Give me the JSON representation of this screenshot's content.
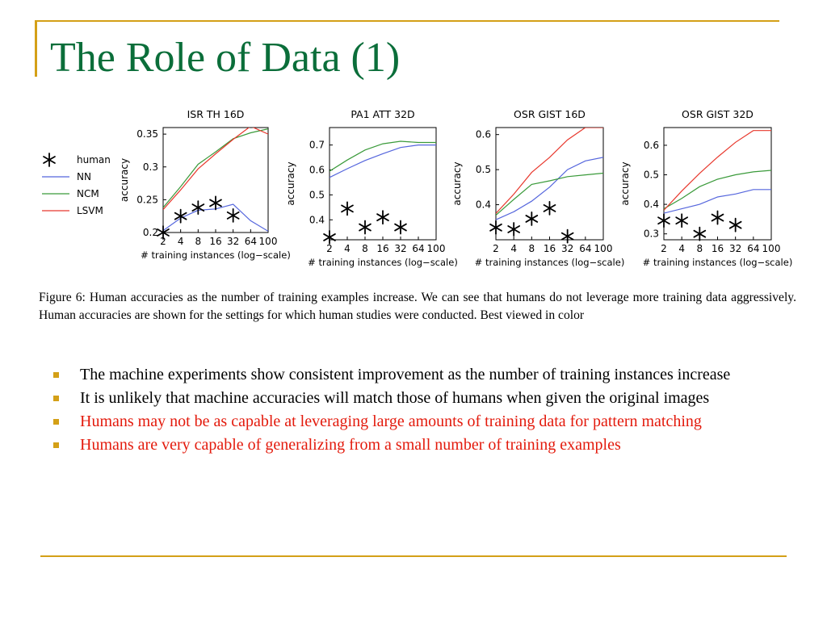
{
  "slide": {
    "title": "The Role of Data (1)",
    "caption": "Figure 6: Human accuracies as the number of training examples increase. We can see that humans do not leverage more training data aggressively. Human accuracies are shown for the settings for which human studies were conducted. Best viewed in color",
    "bullets": [
      {
        "text": "The machine experiments show consistent improvement as the number of training instances increase",
        "color": "#000000"
      },
      {
        "text": "It is unlikely that machine accuracies will match those of humans when given the original images",
        "color": "#000000"
      },
      {
        "text": "Humans may not be as capable at leveraging large amounts of training data for pattern matching",
        "color": "#e31a0c"
      },
      {
        "text": "Humans are very capable of generalizing from a small number of training examples",
        "color": "#e31a0c"
      }
    ],
    "colors": {
      "title": "#0b6e3a",
      "accent": "#d4a017",
      "highlight": "#e31a0c"
    }
  },
  "legend": [
    {
      "name": "human",
      "style": "asterisk",
      "color": "#000000"
    },
    {
      "name": "NN",
      "style": "line",
      "color": "#5566dd"
    },
    {
      "name": "NCM",
      "style": "line",
      "color": "#3a9a3a"
    },
    {
      "name": "LSVM",
      "style": "line",
      "color": "#e8382d"
    }
  ],
  "chart_data": [
    {
      "type": "line",
      "title": "ISR TH 16D",
      "xlabel": "# training instances (log−scale)",
      "ylabel": "accuracy",
      "x": [
        2,
        4,
        8,
        16,
        32,
        64,
        100
      ],
      "ylim": [
        0.2,
        0.36
      ],
      "yticks": [
        0.2,
        0.25,
        0.3,
        0.35
      ],
      "yticklabels": [
        "0.2",
        "0.25",
        "0.3",
        "0.35"
      ],
      "series": [
        {
          "name": "NN",
          "values": [
            0.203,
            0.222,
            0.234,
            0.236,
            0.243,
            0.218,
            0.202
          ]
        },
        {
          "name": "NCM",
          "values": [
            0.238,
            0.27,
            0.304,
            0.323,
            0.343,
            0.352,
            0.358
          ]
        },
        {
          "name": "LSVM",
          "values": [
            0.235,
            0.265,
            0.297,
            0.32,
            0.342,
            0.362,
            0.35
          ]
        },
        {
          "name": "human",
          "x": [
            2,
            4,
            8,
            16,
            32
          ],
          "values": [
            0.2,
            0.225,
            0.238,
            0.245,
            0.226
          ]
        }
      ]
    },
    {
      "type": "line",
      "title": "PA1 ATT 32D",
      "xlabel": "# training instances (log−scale)",
      "ylabel": "accuracy",
      "x": [
        2,
        4,
        8,
        16,
        32,
        64,
        100
      ],
      "ylim": [
        0.32,
        0.77
      ],
      "yticks": [
        0.4,
        0.5,
        0.6,
        0.7
      ],
      "yticklabels": [
        "0.4",
        "0.5",
        "0.6",
        "0.7"
      ],
      "series": [
        {
          "name": "NN",
          "values": [
            0.57,
            0.605,
            0.638,
            0.665,
            0.69,
            0.7,
            0.7
          ]
        },
        {
          "name": "NCM",
          "values": [
            0.595,
            0.64,
            0.68,
            0.705,
            0.715,
            0.71,
            0.71
          ]
        },
        {
          "name": "human",
          "x": [
            2,
            4,
            8,
            16,
            32
          ],
          "values": [
            0.33,
            0.445,
            0.37,
            0.41,
            0.37
          ]
        }
      ]
    },
    {
      "type": "line",
      "title": "OSR GIST 16D",
      "xlabel": "# training instances (log−scale)",
      "ylabel": "accuracy",
      "x": [
        2,
        4,
        8,
        16,
        32,
        64,
        100
      ],
      "ylim": [
        0.3,
        0.62
      ],
      "yticks": [
        0.4,
        0.5,
        0.6
      ],
      "yticklabels": [
        "0.4",
        "0.5",
        "0.6"
      ],
      "series": [
        {
          "name": "NN",
          "values": [
            0.357,
            0.38,
            0.41,
            0.45,
            0.5,
            0.525,
            0.535
          ]
        },
        {
          "name": "NCM",
          "values": [
            0.37,
            0.415,
            0.458,
            0.468,
            0.48,
            0.485,
            0.49
          ]
        },
        {
          "name": "LSVM",
          "values": [
            0.375,
            0.43,
            0.492,
            0.535,
            0.585,
            0.62,
            0.62
          ]
        },
        {
          "name": "human",
          "x": [
            2,
            4,
            8,
            16,
            32
          ],
          "values": [
            0.335,
            0.33,
            0.36,
            0.39,
            0.31
          ]
        }
      ]
    },
    {
      "type": "line",
      "title": "OSR GIST 32D",
      "xlabel": "# training instances (log−scale)",
      "ylabel": "accuracy",
      "x": [
        2,
        4,
        8,
        16,
        32,
        64,
        100
      ],
      "ylim": [
        0.28,
        0.66
      ],
      "yticks": [
        0.3,
        0.4,
        0.5,
        0.6
      ],
      "yticklabels": [
        "0.3",
        "0.4",
        "0.5",
        "0.6"
      ],
      "series": [
        {
          "name": "NN",
          "values": [
            0.37,
            0.385,
            0.4,
            0.425,
            0.435,
            0.45,
            0.45
          ]
        },
        {
          "name": "NCM",
          "values": [
            0.385,
            0.42,
            0.46,
            0.485,
            0.5,
            0.51,
            0.515
          ]
        },
        {
          "name": "LSVM",
          "values": [
            0.38,
            0.445,
            0.505,
            0.56,
            0.61,
            0.65,
            0.65
          ]
        },
        {
          "name": "human",
          "x": [
            2,
            4,
            8,
            16,
            32
          ],
          "values": [
            0.345,
            0.345,
            0.3,
            0.355,
            0.33
          ]
        }
      ]
    }
  ]
}
